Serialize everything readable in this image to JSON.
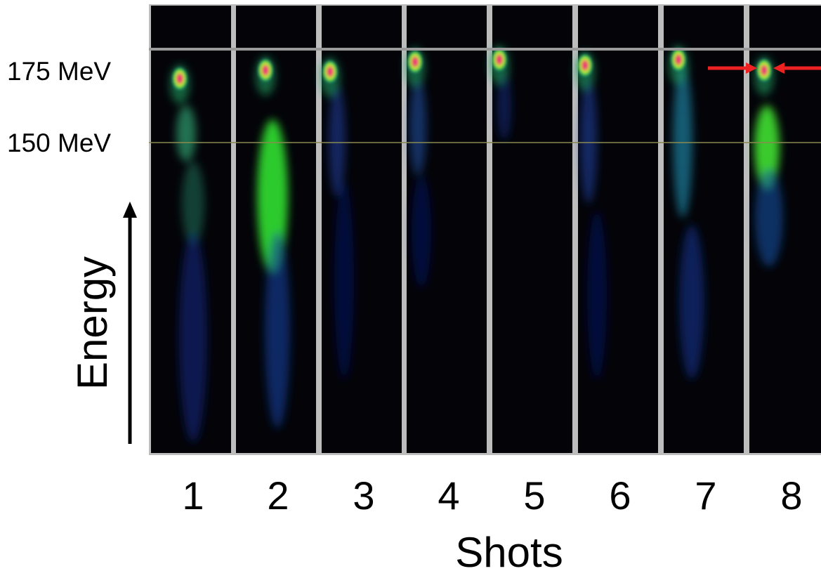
{
  "energy_labels": [
    "175 MeV",
    "150 MeV"
  ],
  "axis": {
    "y": "Energy",
    "x": "Shots"
  },
  "shots": [
    "1",
    "2",
    "3",
    "4",
    "5",
    "6",
    "7",
    "8"
  ]
}
